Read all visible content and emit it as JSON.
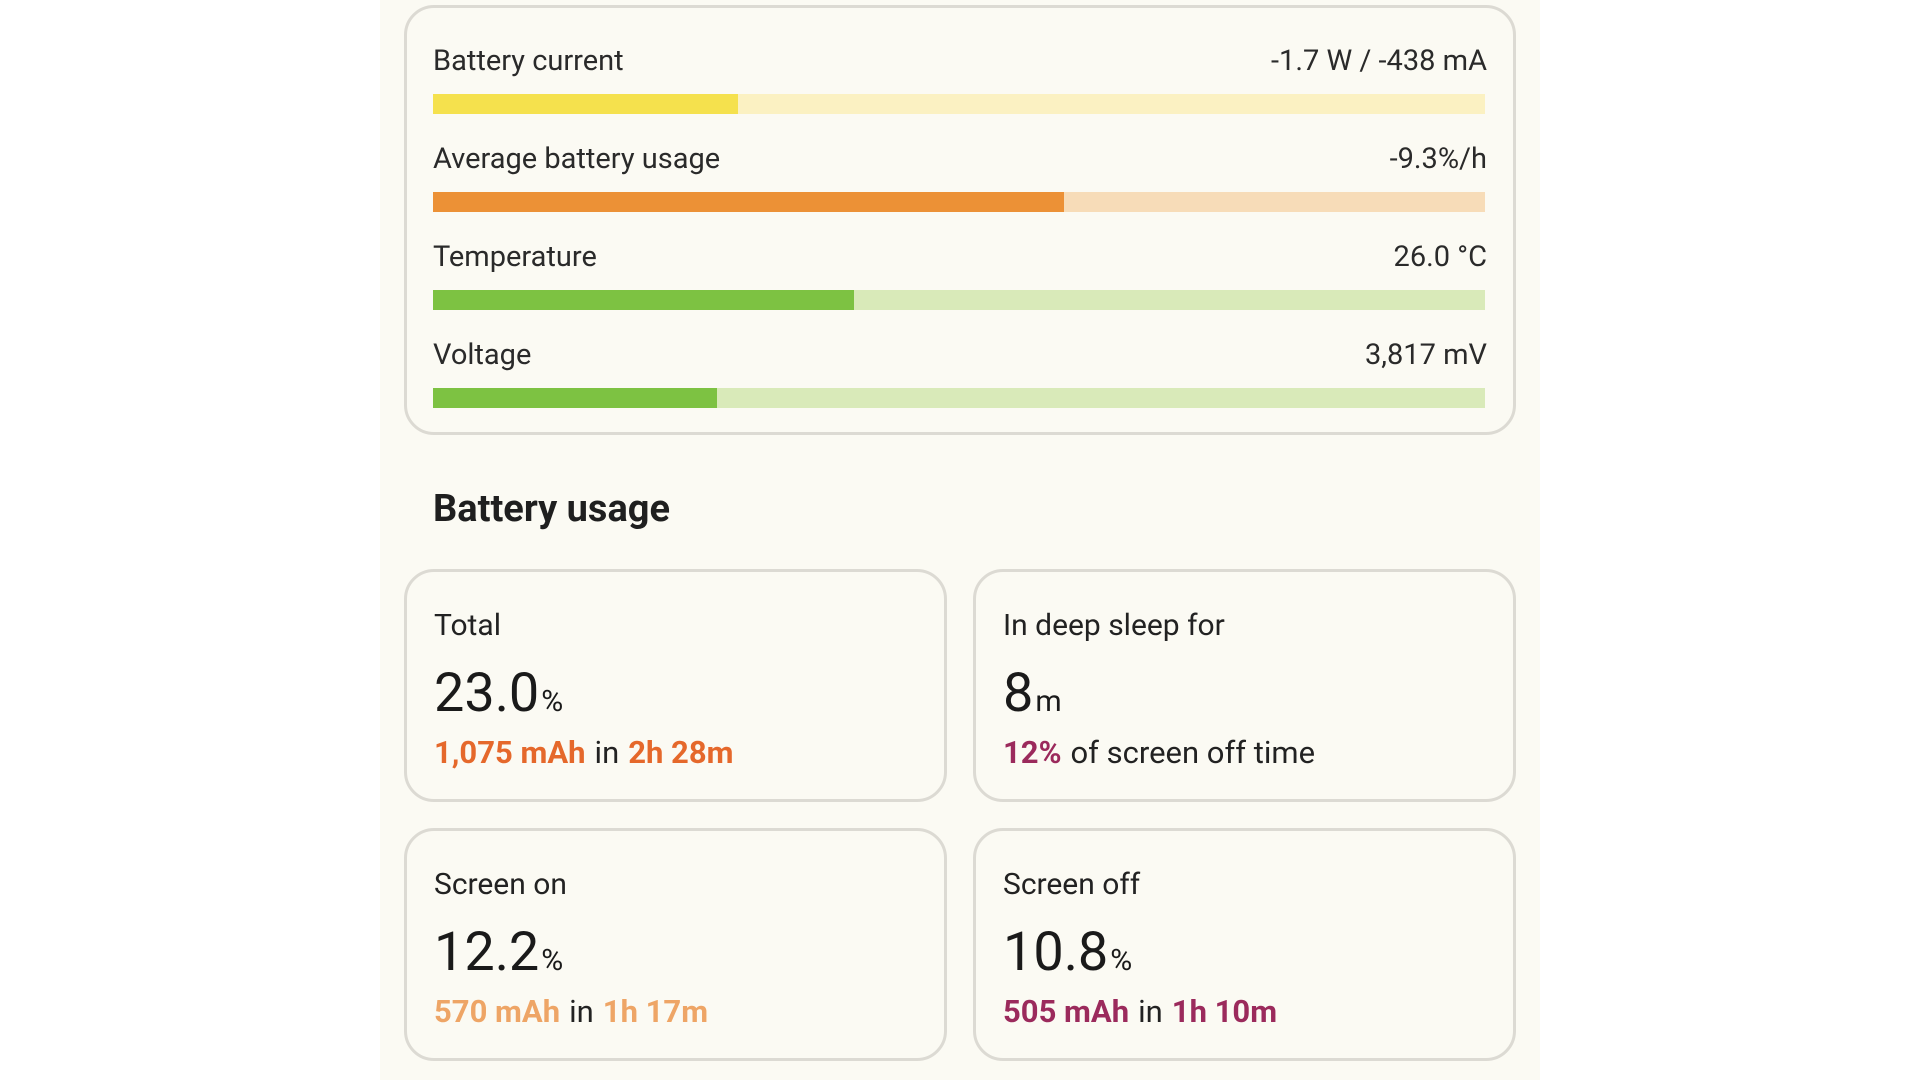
{
  "metrics": [
    {
      "label": "Battery current",
      "value": "-1.7 W / -438 mA",
      "fill": 29,
      "color": "#f5e14d",
      "track": "#fbf1c2"
    },
    {
      "label": "Average battery usage",
      "value": "-9.3%/h",
      "fill": 60,
      "color": "#ec9136",
      "track": "#f7dcb8"
    },
    {
      "label": "Temperature",
      "value": "26.0 °C",
      "fill": 40,
      "color": "#7dc242",
      "track": "#d9eab9"
    },
    {
      "label": "Voltage",
      "value": "3,817 mV",
      "fill": 27,
      "color": "#7dc242",
      "track": "#d9eab9"
    }
  ],
  "section_title": "Battery usage",
  "cards": [
    {
      "title": "Total",
      "value": "23.0",
      "unit": "%",
      "detail": [
        {
          "text": "1,075 mAh",
          "color": "#e5682b"
        },
        {
          "text": "in"
        },
        {
          "text": "2h 28m",
          "color": "#e5682b"
        }
      ]
    },
    {
      "title": "In deep sleep for",
      "value": "8",
      "unit": "m",
      "detail": [
        {
          "text": "12%",
          "color": "#9b2a5c"
        },
        {
          "text": "of screen off time"
        }
      ]
    },
    {
      "title": "Screen on",
      "value": "12.2",
      "unit": "%",
      "detail": [
        {
          "text": "570 mAh",
          "color": "#eea566"
        },
        {
          "text": "in"
        },
        {
          "text": "1h 17m",
          "color": "#eea566"
        }
      ]
    },
    {
      "title": "Screen off",
      "value": "10.8",
      "unit": "%",
      "detail": [
        {
          "text": "505 mAh",
          "color": "#9b2a5c"
        },
        {
          "text": "in"
        },
        {
          "text": "1h 10m",
          "color": "#9b2a5c"
        }
      ]
    }
  ]
}
